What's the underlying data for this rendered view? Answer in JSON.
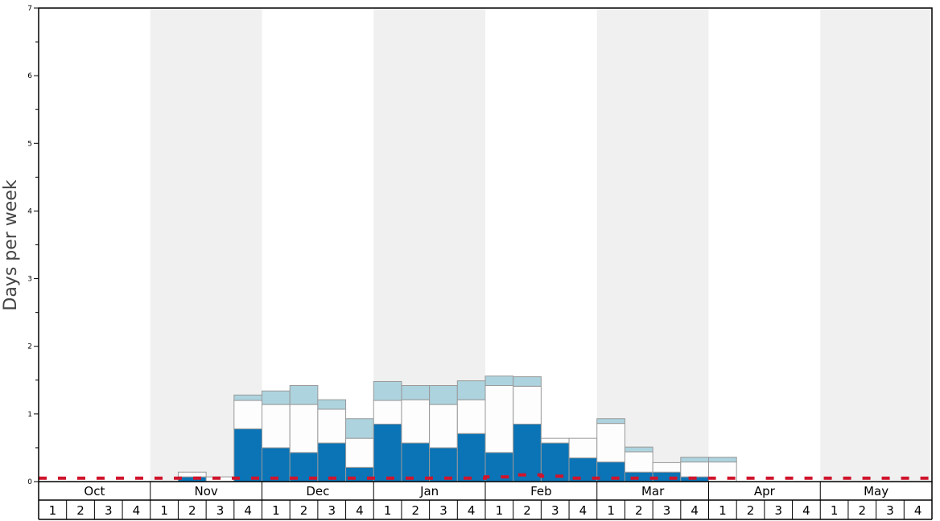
{
  "chart_data": {
    "type": "bar",
    "stacked": true,
    "ylabel": "Days per week",
    "ylim": [
      0,
      7
    ],
    "y_major_ticks": [
      "0",
      "1",
      "2",
      "3",
      "4",
      "5",
      "6",
      "7"
    ],
    "months": [
      "Oct",
      "Nov",
      "Dec",
      "Jan",
      "Feb",
      "Mar",
      "Apr",
      "May"
    ],
    "week_labels": [
      "1",
      "2",
      "3",
      "4"
    ],
    "month_bands": [
      "white",
      "shaded",
      "white",
      "shaded",
      "white",
      "shaded",
      "white",
      "shaded"
    ],
    "colors": {
      "band_shaded": "#f0f0f0",
      "dark": "#0a74b6",
      "mid": "#fdfdfd",
      "light": "#add3de",
      "bar_border": "#999999",
      "dashed_line": "#d0142c",
      "axis": "#000000"
    },
    "series": [
      {
        "key": "dark",
        "values": [
          0,
          0,
          0,
          0,
          0,
          0.07,
          0,
          0.78,
          0.5,
          0.43,
          0.57,
          0.21,
          0.85,
          0.57,
          0.5,
          0.71,
          0.43,
          0.85,
          0.57,
          0.35,
          0.29,
          0.14,
          0.14,
          0.07,
          0,
          0,
          0,
          0,
          0,
          0,
          0,
          0
        ]
      },
      {
        "key": "mid",
        "values": [
          0,
          0,
          0,
          0,
          0,
          0.07,
          0.07,
          0.42,
          0.64,
          0.71,
          0.5,
          0.43,
          0.35,
          0.64,
          0.64,
          0.5,
          0.99,
          0.56,
          0.07,
          0.29,
          0.57,
          0.3,
          0.14,
          0.22,
          0.29,
          0,
          0,
          0,
          0,
          0,
          0,
          0
        ]
      },
      {
        "key": "light",
        "values": [
          0,
          0,
          0,
          0,
          0,
          0,
          0,
          0.08,
          0.2,
          0.28,
          0.14,
          0.29,
          0.28,
          0.21,
          0.28,
          0.28,
          0.14,
          0.14,
          0,
          0,
          0.07,
          0.07,
          0,
          0.07,
          0.07,
          0,
          0,
          0,
          0,
          0,
          0,
          0
        ]
      }
    ],
    "dashed_line_values": [
      0.05,
      0.05,
      0.05,
      0.05,
      0.05,
      0.05,
      0.05,
      0.05,
      0.05,
      0.05,
      0.05,
      0.05,
      0.05,
      0.05,
      0.05,
      0.05,
      0.07,
      0.1,
      0.08,
      0.05,
      0.05,
      0.05,
      0.05,
      0.05,
      0.05,
      0.05,
      0.05,
      0.05,
      0.05,
      0.05,
      0.05,
      0.05
    ]
  }
}
